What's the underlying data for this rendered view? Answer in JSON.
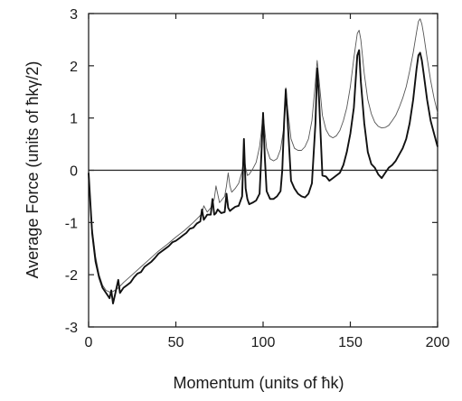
{
  "chart_data": {
    "type": "line",
    "title": "",
    "xlabel": "Momentum (units of ħk)",
    "ylabel": "Average Force (units of ħkγ/2)",
    "xlim": [
      0,
      200
    ],
    "ylim": [
      -3,
      3
    ],
    "xticks": [
      0,
      50,
      100,
      150,
      200
    ],
    "yticks": [
      -3,
      -2,
      -1,
      0,
      1,
      2,
      3
    ],
    "grid": false,
    "legend": "none",
    "reference_line_y": 0,
    "series": [
      {
        "style": "thin",
        "color": "#555555",
        "x": [
          0,
          2,
          4,
          6,
          8,
          10,
          12,
          14,
          16,
          18,
          20,
          25,
          30,
          35,
          40,
          45,
          50,
          55,
          60,
          63,
          65,
          66,
          68,
          70,
          72,
          73,
          75,
          78,
          79,
          80,
          81,
          82,
          84,
          86,
          88,
          89,
          90,
          91,
          92,
          94,
          96,
          98,
          99,
          100,
          101,
          102,
          104,
          106,
          108,
          110,
          112,
          113,
          114,
          116,
          118,
          120,
          122,
          124,
          126,
          128,
          130,
          131,
          132,
          134,
          136,
          138,
          140,
          142,
          144,
          146,
          148,
          150,
          152,
          154,
          155,
          156,
          158,
          160,
          162,
          164,
          166,
          168,
          170,
          172,
          174,
          176,
          178,
          180,
          182,
          184,
          186,
          188,
          189,
          190,
          191,
          192,
          194,
          196,
          198,
          200
        ],
        "y": [
          -0.1,
          -1.1,
          -1.65,
          -2.0,
          -2.2,
          -2.3,
          -2.33,
          -2.32,
          -2.28,
          -2.22,
          -2.15,
          -2.0,
          -1.85,
          -1.7,
          -1.55,
          -1.42,
          -1.28,
          -1.15,
          -1.0,
          -0.9,
          -0.83,
          -0.68,
          -0.8,
          -0.72,
          -0.55,
          -0.3,
          -0.62,
          -0.5,
          -0.3,
          -0.05,
          -0.3,
          -0.42,
          -0.35,
          -0.25,
          -0.02,
          0.28,
          0.05,
          -0.1,
          -0.08,
          0.02,
          0.15,
          0.45,
          0.75,
          1.1,
          0.75,
          0.42,
          0.22,
          0.18,
          0.22,
          0.4,
          0.85,
          1.58,
          1.2,
          0.6,
          0.42,
          0.38,
          0.38,
          0.45,
          0.6,
          0.95,
          1.7,
          2.1,
          1.75,
          1.05,
          0.78,
          0.66,
          0.62,
          0.66,
          0.76,
          0.95,
          1.2,
          1.6,
          2.15,
          2.62,
          2.68,
          2.5,
          1.85,
          1.35,
          1.08,
          0.92,
          0.84,
          0.81,
          0.82,
          0.86,
          0.95,
          1.05,
          1.2,
          1.38,
          1.6,
          1.9,
          2.25,
          2.65,
          2.85,
          2.9,
          2.8,
          2.6,
          2.15,
          1.72,
          1.38,
          1.1
        ]
      },
      {
        "style": "thick",
        "color": "#111111",
        "x": [
          0,
          2,
          4,
          6,
          8,
          10,
          12,
          13,
          14,
          15,
          16,
          17,
          18,
          20,
          22,
          24,
          26,
          28,
          30,
          32,
          34,
          36,
          38,
          40,
          42,
          44,
          46,
          48,
          50,
          52,
          54,
          56,
          58,
          60,
          62,
          64,
          65,
          66,
          67,
          68,
          70,
          71,
          72,
          73,
          74,
          76,
          78,
          79,
          80,
          81,
          82,
          84,
          86,
          88,
          89,
          90,
          91,
          92,
          94,
          96,
          98,
          99,
          100,
          101,
          102,
          104,
          106,
          108,
          110,
          111,
          112,
          113,
          114,
          116,
          118,
          120,
          122,
          124,
          126,
          128,
          130,
          131,
          132,
          134,
          136,
          138,
          140,
          142,
          144,
          146,
          148,
          150,
          152,
          154,
          155,
          156,
          158,
          160,
          162,
          164,
          166,
          168,
          170,
          172,
          174,
          176,
          178,
          180,
          182,
          184,
          186,
          188,
          189,
          190,
          191,
          192,
          194,
          196,
          198,
          200
        ],
        "y": [
          -0.05,
          -1.2,
          -1.75,
          -2.05,
          -2.25,
          -2.35,
          -2.45,
          -2.3,
          -2.55,
          -2.4,
          -2.25,
          -2.1,
          -2.35,
          -2.25,
          -2.2,
          -2.15,
          -2.05,
          -1.98,
          -1.95,
          -1.85,
          -1.8,
          -1.75,
          -1.68,
          -1.6,
          -1.55,
          -1.5,
          -1.45,
          -1.38,
          -1.35,
          -1.3,
          -1.25,
          -1.2,
          -1.12,
          -1.1,
          -1.02,
          -0.98,
          -0.75,
          -0.95,
          -0.9,
          -0.85,
          -0.85,
          -0.55,
          -0.85,
          -0.82,
          -0.75,
          -0.82,
          -0.8,
          -0.45,
          -0.72,
          -0.78,
          -0.75,
          -0.7,
          -0.68,
          -0.5,
          0.6,
          -0.35,
          -0.55,
          -0.65,
          -0.62,
          -0.58,
          -0.45,
          0.3,
          1.1,
          0.25,
          -0.4,
          -0.55,
          -0.55,
          -0.5,
          -0.4,
          0.0,
          0.9,
          1.55,
          1.0,
          -0.2,
          -0.35,
          -0.45,
          -0.5,
          -0.52,
          -0.45,
          -0.25,
          0.9,
          1.95,
          1.4,
          -0.1,
          -0.12,
          -0.2,
          -0.15,
          -0.1,
          -0.05,
          0.1,
          0.35,
          0.7,
          1.2,
          2.2,
          2.3,
          1.7,
          0.9,
          0.35,
          0.12,
          0.05,
          -0.08,
          -0.15,
          -0.05,
          0.05,
          0.1,
          0.18,
          0.3,
          0.42,
          0.6,
          0.9,
          1.35,
          1.95,
          2.2,
          2.25,
          2.1,
          1.85,
          1.35,
          0.95,
          0.7,
          0.45
        ]
      }
    ]
  }
}
